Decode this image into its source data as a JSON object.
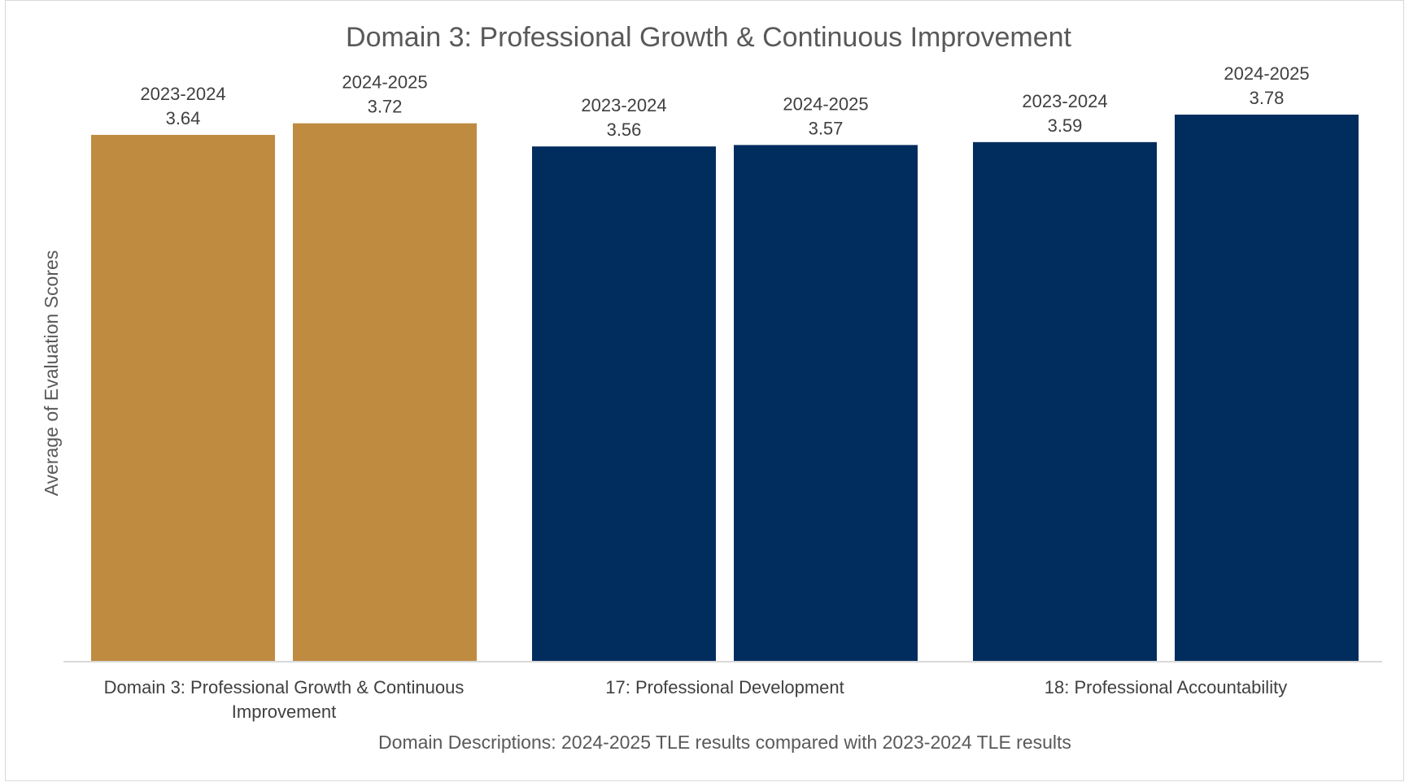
{
  "chart_data": {
    "type": "bar",
    "title": "Domain 3: Professional Growth & Continuous Improvement",
    "xlabel": "Domain Descriptions: 2024-2025 TLE results compared with 2023-2024 TLE results",
    "ylabel": "Average of Evaluation Scores",
    "categories": [
      "Domain 3: Professional Growth & Continuous Improvement",
      "17: Professional Development",
      "18: Professional Accountability"
    ],
    "series": [
      {
        "name": "2023-2024",
        "values": [
          3.64,
          3.56,
          3.59
        ]
      },
      {
        "name": "2024-2025",
        "values": [
          3.72,
          3.57,
          3.78
        ]
      }
    ],
    "ylim": [
      0,
      3.78
    ],
    "grid": false,
    "legend": "none",
    "colors": {
      "highlight": "#bf8b40",
      "default": "#002d5e",
      "axis": "#d9d9d9",
      "text": "#404040",
      "title": "#595959"
    },
    "highlight_category_index": 0
  }
}
